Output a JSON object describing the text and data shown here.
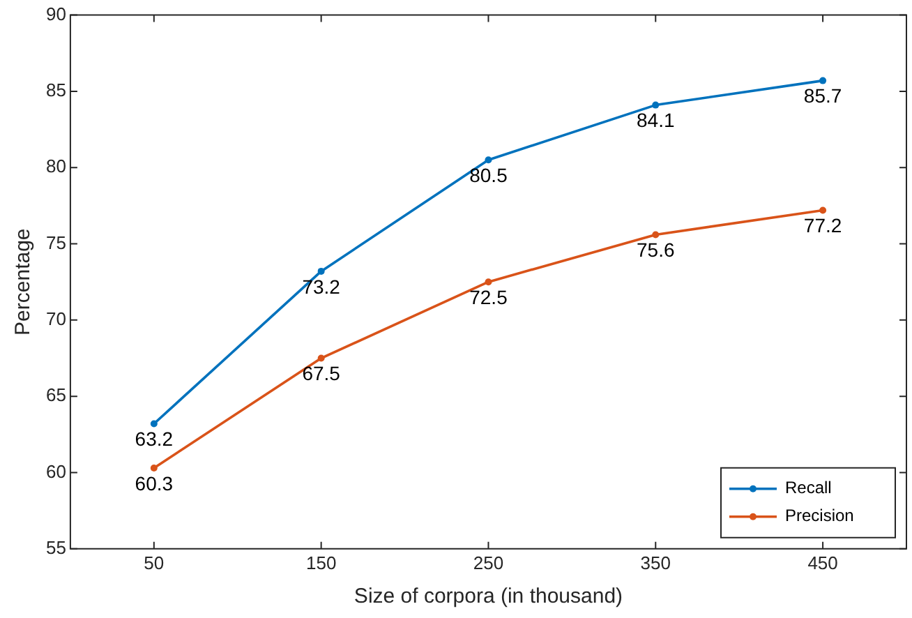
{
  "chart_data": {
    "type": "line",
    "xlabel": "Size of corpora (in thousand)",
    "ylabel": "Percentage",
    "x": [
      50,
      150,
      250,
      350,
      450
    ],
    "series": [
      {
        "name": "Recall",
        "color": "#0072bd",
        "values": [
          63.2,
          73.2,
          80.5,
          84.1,
          85.7
        ]
      },
      {
        "name": "Precision",
        "color": "#d95319",
        "values": [
          60.3,
          67.5,
          72.5,
          75.6,
          77.2
        ]
      }
    ],
    "xlim": [
      0,
      500
    ],
    "xticks": [
      50,
      150,
      250,
      350,
      450
    ],
    "ylim": [
      55,
      90
    ],
    "yticks": [
      55,
      60,
      65,
      70,
      75,
      80,
      85,
      90
    ],
    "grid": false,
    "legend": "bottom right",
    "marker": "circle",
    "line_style": "solid",
    "data_labels": true
  }
}
